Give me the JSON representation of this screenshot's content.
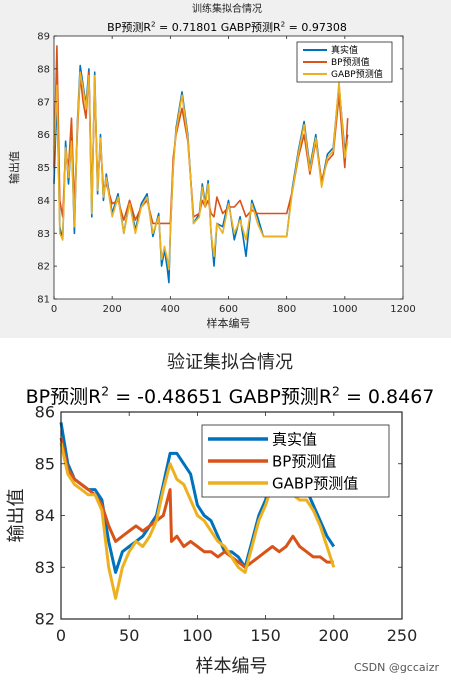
{
  "chart_data": [
    {
      "type": "line",
      "title": "训练集拟合情况",
      "subtitle_parts": {
        "bp_label": "BP预测R",
        "bp_value": " = 0.71801",
        "gabp_label": "GABP预测R",
        "gabp_value": " = 0.97308",
        "sup": "2"
      },
      "xlabel": "样本编号",
      "ylabel": "输出值",
      "xlim": [
        0,
        1200
      ],
      "ylim": [
        81,
        89
      ],
      "xticks": [
        0,
        200,
        400,
        600,
        800,
        1000,
        1200
      ],
      "yticks": [
        81,
        82,
        83,
        84,
        85,
        86,
        87,
        88,
        89
      ],
      "legend_position": "top-right",
      "series": [
        {
          "name": "真实值",
          "color": "#0072BD",
          "x": [
            0,
            10,
            20,
            30,
            40,
            50,
            60,
            70,
            80,
            90,
            100,
            110,
            120,
            130,
            140,
            150,
            160,
            170,
            180,
            200,
            220,
            240,
            260,
            280,
            300,
            320,
            340,
            360,
            370,
            380,
            390,
            395,
            400,
            410,
            420,
            440,
            460,
            480,
            500,
            510,
            520,
            530,
            540,
            550,
            560,
            580,
            600,
            620,
            640,
            660,
            680,
            700,
            720,
            740,
            760,
            780,
            800,
            820,
            840,
            860,
            880,
            900,
            920,
            940,
            960,
            980,
            1000,
            1010
          ],
          "values": [
            84.5,
            87.2,
            83.2,
            82.8,
            85.8,
            84.5,
            85.9,
            83.0,
            86.3,
            88.1,
            87.5,
            86.9,
            88.0,
            83.5,
            87.9,
            84.2,
            86.0,
            84.0,
            84.8,
            83.6,
            84.2,
            83.0,
            84.0,
            83.1,
            83.9,
            84.2,
            82.9,
            83.6,
            82.0,
            82.5,
            81.9,
            81.5,
            83.0,
            85.0,
            86.2,
            87.3,
            86.0,
            83.3,
            83.6,
            84.5,
            83.9,
            84.6,
            83.0,
            82.0,
            83.3,
            83.2,
            84.0,
            82.8,
            83.5,
            82.3,
            84.0,
            83.5,
            82.9,
            82.9,
            82.9,
            82.9,
            82.9,
            84.4,
            85.5,
            86.4,
            85.0,
            86.0,
            84.5,
            85.4,
            85.6,
            87.5,
            85.5,
            86.0
          ]
        },
        {
          "name": "BP预测值",
          "color": "#D95319",
          "x": [
            0,
            10,
            20,
            30,
            40,
            50,
            60,
            70,
            80,
            90,
            100,
            110,
            120,
            130,
            140,
            150,
            160,
            170,
            180,
            200,
            220,
            240,
            260,
            280,
            300,
            320,
            340,
            360,
            370,
            380,
            390,
            395,
            400,
            410,
            420,
            440,
            460,
            480,
            500,
            510,
            520,
            530,
            540,
            550,
            560,
            580,
            600,
            620,
            640,
            660,
            680,
            700,
            720,
            740,
            760,
            780,
            800,
            820,
            840,
            860,
            880,
            900,
            920,
            940,
            960,
            980,
            1000,
            1010
          ],
          "values": [
            85.0,
            88.7,
            84.0,
            83.5,
            85.5,
            85.0,
            86.5,
            83.8,
            86.0,
            87.8,
            87.0,
            86.5,
            87.9,
            84.0,
            87.5,
            84.5,
            85.7,
            84.4,
            84.5,
            83.9,
            84.0,
            83.4,
            84.0,
            83.4,
            83.8,
            84.0,
            83.3,
            83.3,
            83.3,
            83.3,
            83.3,
            83.3,
            83.3,
            85.3,
            86.0,
            86.8,
            85.8,
            83.5,
            83.6,
            84.0,
            83.8,
            84.0,
            83.6,
            83.5,
            84.1,
            83.6,
            83.8,
            83.8,
            84.0,
            83.5,
            83.7,
            83.6,
            83.6,
            83.6,
            83.6,
            83.6,
            83.6,
            84.3,
            85.3,
            86.0,
            84.8,
            85.8,
            84.6,
            85.2,
            85.4,
            87.2,
            85.0,
            86.5
          ]
        },
        {
          "name": "GABP预测值",
          "color": "#EDB120",
          "x": [
            0,
            10,
            20,
            30,
            40,
            50,
            60,
            70,
            80,
            90,
            100,
            110,
            120,
            130,
            140,
            150,
            160,
            170,
            180,
            200,
            220,
            240,
            260,
            280,
            300,
            320,
            340,
            360,
            370,
            380,
            390,
            395,
            400,
            410,
            420,
            440,
            460,
            480,
            500,
            510,
            520,
            530,
            540,
            550,
            560,
            580,
            600,
            620,
            640,
            660,
            680,
            700,
            720,
            740,
            760,
            780,
            800,
            820,
            840,
            860,
            880,
            900,
            920,
            940,
            960,
            980,
            1000,
            1010
          ],
          "values": [
            85.5,
            87.5,
            83.0,
            82.8,
            85.6,
            84.7,
            85.8,
            83.2,
            86.2,
            87.9,
            87.4,
            86.8,
            87.8,
            83.6,
            87.8,
            84.3,
            85.9,
            84.1,
            84.7,
            83.5,
            84.1,
            83.0,
            83.9,
            83.0,
            83.8,
            84.1,
            83.0,
            83.5,
            82.2,
            82.6,
            82.2,
            81.9,
            83.0,
            85.0,
            86.1,
            87.2,
            85.9,
            83.3,
            83.5,
            84.4,
            83.8,
            84.5,
            83.0,
            82.3,
            83.3,
            83.0,
            83.9,
            83.0,
            83.4,
            82.8,
            83.9,
            83.3,
            82.9,
            82.9,
            82.9,
            82.9,
            82.9,
            84.3,
            85.4,
            86.3,
            84.9,
            85.9,
            84.4,
            85.3,
            85.5,
            87.6,
            85.3,
            85.8
          ]
        }
      ]
    },
    {
      "type": "line",
      "title": "验证集拟合情况",
      "subtitle_parts": {
        "bp_label": "BP预测R",
        "bp_value": " = -0.48651",
        "gabp_label": "GABP预测R",
        "gabp_value": " = 0.8467",
        "sup": "2"
      },
      "xlabel": "样本编号",
      "ylabel": "输出值",
      "xlim": [
        0,
        250
      ],
      "ylim": [
        82,
        86
      ],
      "xticks": [
        0,
        50,
        100,
        150,
        200,
        250
      ],
      "yticks": [
        82,
        83,
        84,
        85,
        86
      ],
      "legend_position": "top-right",
      "series": [
        {
          "name": "真实值",
          "color": "#0072BD",
          "x": [
            0,
            5,
            10,
            15,
            20,
            25,
            30,
            35,
            40,
            45,
            50,
            55,
            60,
            65,
            70,
            75,
            80,
            85,
            90,
            95,
            100,
            105,
            110,
            115,
            120,
            125,
            130,
            135,
            140,
            145,
            150,
            155,
            160,
            165,
            170,
            175,
            180,
            185,
            190,
            195,
            200
          ],
          "values": [
            85.8,
            85.0,
            84.7,
            84.6,
            84.5,
            84.5,
            84.3,
            83.5,
            82.9,
            83.3,
            83.4,
            83.5,
            83.6,
            83.8,
            84.0,
            84.6,
            85.2,
            85.2,
            85.0,
            84.8,
            84.2,
            84.0,
            83.9,
            83.6,
            83.3,
            83.3,
            83.2,
            83.0,
            83.5,
            84.0,
            84.3,
            84.8,
            84.8,
            84.8,
            84.5,
            84.5,
            84.5,
            84.2,
            83.9,
            83.6,
            83.4
          ]
        },
        {
          "name": "BP预测值",
          "color": "#D95319",
          "x": [
            0,
            5,
            10,
            15,
            20,
            25,
            30,
            35,
            40,
            45,
            50,
            55,
            60,
            65,
            70,
            75,
            80,
            81,
            85,
            90,
            95,
            100,
            105,
            110,
            115,
            120,
            125,
            130,
            135,
            140,
            145,
            150,
            155,
            160,
            165,
            170,
            175,
            180,
            185,
            190,
            195,
            200
          ],
          "values": [
            85.5,
            84.9,
            84.7,
            84.6,
            84.5,
            84.4,
            84.2,
            83.8,
            83.5,
            83.6,
            83.7,
            83.8,
            83.7,
            83.8,
            83.9,
            84.0,
            84.5,
            83.5,
            83.6,
            83.4,
            83.5,
            83.4,
            83.3,
            83.3,
            83.2,
            83.3,
            83.2,
            83.1,
            83.0,
            83.1,
            83.2,
            83.3,
            83.4,
            83.3,
            83.4,
            83.6,
            83.4,
            83.3,
            83.2,
            83.2,
            83.1,
            83.1
          ]
        },
        {
          "name": "GABP预测值",
          "color": "#EDB120",
          "x": [
            0,
            5,
            10,
            15,
            20,
            25,
            30,
            35,
            40,
            45,
            50,
            55,
            60,
            65,
            70,
            75,
            80,
            85,
            90,
            95,
            100,
            105,
            110,
            115,
            120,
            125,
            130,
            135,
            140,
            145,
            150,
            155,
            160,
            165,
            170,
            175,
            180,
            185,
            190,
            195,
            200
          ],
          "values": [
            85.4,
            84.8,
            84.6,
            84.5,
            84.4,
            84.4,
            84.1,
            83.0,
            82.4,
            83.0,
            83.3,
            83.5,
            83.4,
            83.6,
            83.9,
            84.5,
            85.0,
            84.7,
            84.6,
            84.3,
            84.0,
            83.9,
            83.7,
            83.5,
            83.4,
            83.2,
            83.0,
            82.9,
            83.4,
            83.9,
            84.2,
            84.6,
            84.5,
            84.4,
            84.4,
            84.3,
            84.3,
            84.1,
            83.8,
            83.4,
            83.0
          ]
        }
      ]
    }
  ],
  "watermark": "CSDN @gccaizr"
}
